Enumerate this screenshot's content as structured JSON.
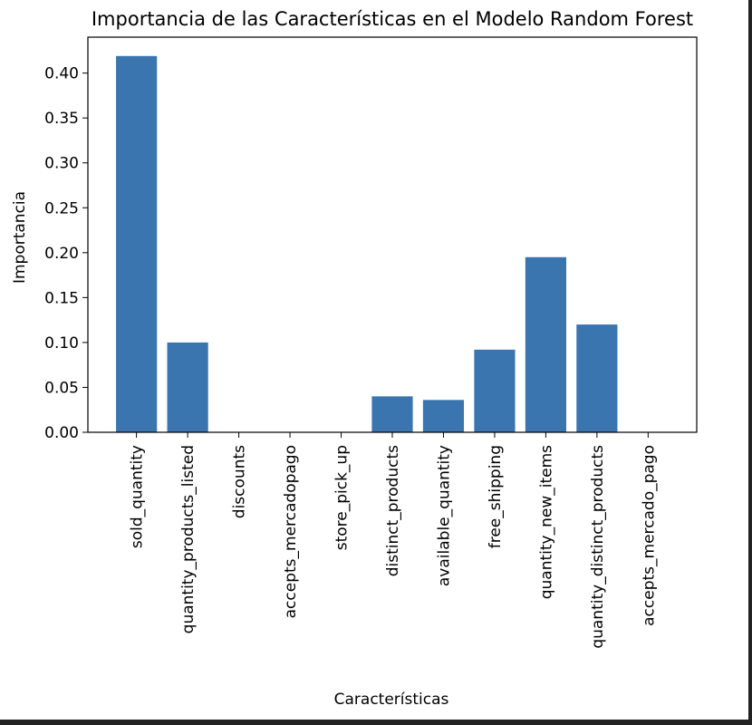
{
  "chart_data": {
    "type": "bar",
    "title": "Importancia de las Características en el Modelo Random Forest",
    "xlabel": "Características",
    "ylabel": "Importancia",
    "categories": [
      "sold_quantity",
      "quantity_products_listed",
      "discounts",
      "accepts_mercadopago",
      "store_pick_up",
      "distinct_products",
      "available_quantity",
      "free_shipping",
      "quantity_new_items",
      "quantity_distinct_products",
      "accepts_mercado_pago"
    ],
    "values": [
      0.419,
      0.1,
      0.0,
      0.0,
      0.0,
      0.04,
      0.036,
      0.092,
      0.195,
      0.12,
      0.0
    ],
    "yticks": [
      "0.00",
      "0.05",
      "0.10",
      "0.15",
      "0.20",
      "0.25",
      "0.30",
      "0.35",
      "0.40"
    ],
    "ylim": [
      0,
      0.44
    ],
    "bar_color": "#3a75b0",
    "grid": false
  }
}
